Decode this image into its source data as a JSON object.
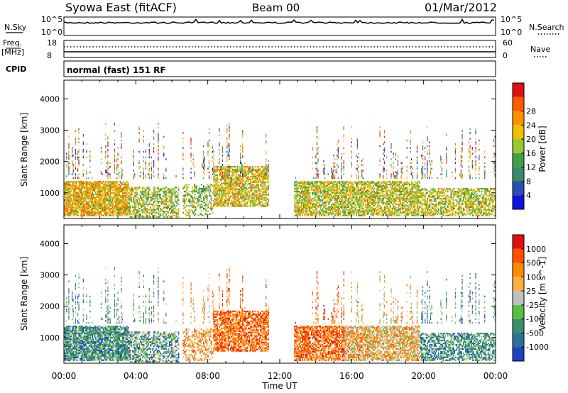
{
  "header": {
    "station": "Syowa East (fitACF)",
    "beam": "Beam 00",
    "date": "01/Mar/2012"
  },
  "panels": {
    "nsky": {
      "label": "N.Sky",
      "tick_top": "10^5",
      "tick_bottom": "10^0",
      "right_label": "N.Search",
      "right_tick_top": "10^5",
      "right_tick_bottom": "10^0"
    },
    "freq": {
      "label_line1": "Freq.",
      "label_line2": "[MHz]",
      "tick_top": "18",
      "tick_bottom": "8",
      "right_label": "Nave",
      "right_tick_top": "60",
      "right_tick_bottom": "0"
    },
    "cpid": {
      "label": "CPID",
      "text": "normal (fast) 151 RF"
    }
  },
  "chart_data": [
    {
      "type": "heatmap",
      "name": "power",
      "ylabel": "Slant Range [km]",
      "yticks": [
        1000,
        2000,
        3000,
        4000
      ],
      "ylim": [
        180,
        4600
      ],
      "xlabel": "Time UT",
      "xticks": [
        "00:00",
        "04:00",
        "08:00",
        "12:00",
        "16:00",
        "20:00",
        "00:00"
      ],
      "xlim_hours": [
        0,
        24
      ],
      "colorbar": {
        "label": "Power [dB]",
        "ticks": [
          "4",
          "8",
          "12",
          "16",
          "20",
          "24",
          "28"
        ],
        "colors": [
          "#1010e0",
          "#2a4fb0",
          "#3a8a6a",
          "#40a048",
          "#98c830",
          "#f0c000",
          "#ff9000",
          "#ff5a00",
          "#e01010"
        ]
      }
    },
    {
      "type": "heatmap",
      "name": "velocity",
      "ylabel": "Slant Range [km]",
      "yticks": [
        1000,
        2000,
        3000,
        4000
      ],
      "ylim": [
        180,
        4600
      ],
      "xlabel": "Time UT",
      "xticks": [
        "00:00",
        "04:00",
        "08:00",
        "12:00",
        "16:00",
        "20:00",
        "00:00"
      ],
      "xlim_hours": [
        0,
        24
      ],
      "colorbar": {
        "label": "Velocity [m s^-1]",
        "ticks": [
          "1000",
          "500",
          "100",
          "25",
          "-25",
          "-100",
          "-500",
          "-1000"
        ],
        "colors": [
          "#2040c0",
          "#2e6f98",
          "#3b8f6e",
          "#58c040",
          "#c0c0c0",
          "#ffb040",
          "#ff8a00",
          "#ff5000",
          "#e01010"
        ]
      }
    }
  ]
}
